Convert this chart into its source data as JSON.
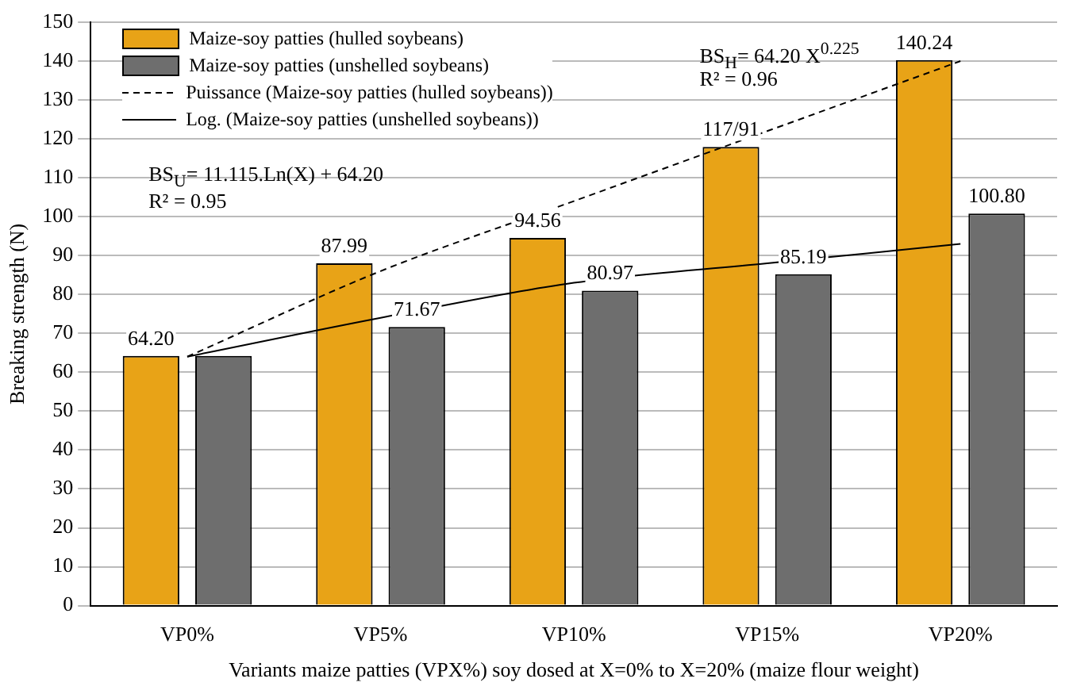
{
  "chart_data": {
    "type": "bar",
    "xlabel": "Variants maize patties (VPX%) soy dosed at X=0% to X=20% (maize flour weight)",
    "ylabel": "Breaking strength (N)",
    "categories": [
      "VP0%",
      "VP5%",
      "VP10%",
      "VP15%",
      "VP20%"
    ],
    "series": [
      {
        "name": "Maize-soy patties (hulled soybeans)",
        "color": "#e8a317",
        "values": [
          64.2,
          87.99,
          94.56,
          117.91,
          140.24
        ],
        "value_labels": [
          "64.20",
          "87.99",
          "94.56",
          "117/91",
          "140.24"
        ]
      },
      {
        "name": "Maize-soy patties (unshelled soybeans)",
        "color": "#6e6e6e",
        "values": [
          64.2,
          71.67,
          80.97,
          85.19,
          100.8
        ],
        "value_labels": [
          null,
          "71.67",
          "80.97",
          "85.19",
          "100.80"
        ]
      },
      {
        "name": "Puissance (Maize-soy patties (hulled soybeans))",
        "type": "line",
        "color": "#000000",
        "line_style": "dashed",
        "marker": "none",
        "x": [
          "VP0%",
          "VP5%",
          "VP10%",
          "VP15%",
          "VP20%"
        ],
        "values": [
          64,
          86,
          104,
          122,
          140
        ]
      },
      {
        "name": "Log. (Maize-soy patties (unshelled soybeans))",
        "type": "line",
        "color": "#000000",
        "line_style": "solid",
        "marker": "none",
        "x": [
          "VP0%",
          "VP5%",
          "VP10%",
          "VP15%",
          "VP20%"
        ],
        "values": [
          64,
          74,
          83,
          88,
          93
        ]
      }
    ],
    "ylim": [
      0,
      150
    ],
    "yticks": [
      0,
      10,
      20,
      30,
      40,
      50,
      60,
      70,
      80,
      90,
      100,
      110,
      120,
      130,
      140,
      150
    ],
    "grid": "y",
    "legend": "top left",
    "annotations": [
      "BS$_{H}$= 64.20 X$^{0.225}$",
      "R² = 0.96",
      "BS$_{U}$= 11.115.Ln(X) + 64.20",
      "R² = 0.95"
    ]
  }
}
